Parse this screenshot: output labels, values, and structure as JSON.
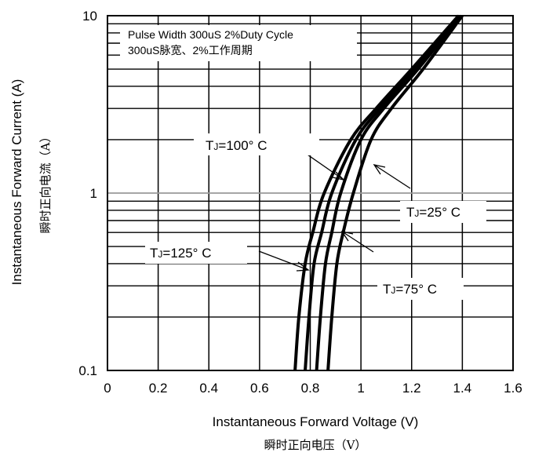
{
  "chart_data": {
    "type": "line",
    "xlabel": "Instantaneous Forward Voltage (V)",
    "xlabel_cn": "瞬时正向电压（V）",
    "ylabel": "Instantaneous Forward Current (A)",
    "ylabel_cn": "瞬时正向电流（A）",
    "xlim": [
      0,
      1.6
    ],
    "ylim": [
      0.1,
      10
    ],
    "yscale": "log",
    "grid": true,
    "x_ticks": [
      "0",
      "0.2",
      "0.4",
      "0.6",
      "0.8",
      "1",
      "1.2",
      "1.4",
      "1.6"
    ],
    "y_ticks": [
      "0.1",
      "1",
      "10"
    ],
    "note_lines": [
      "Pulse Width 300uS 2%Duty Cycle",
      "300uS脉宽、2%工作周期"
    ],
    "series": [
      {
        "name": "TJ=125°C",
        "label_main": "T",
        "label_sub": "J",
        "label_rest": "=125° C",
        "points": [
          [
            0.74,
            0.1
          ],
          [
            0.755,
            0.2
          ],
          [
            0.78,
            0.4
          ],
          [
            0.81,
            0.6
          ],
          [
            0.855,
            1
          ],
          [
            0.96,
            2
          ],
          [
            1.06,
            3
          ],
          [
            1.2,
            5
          ],
          [
            1.385,
            10
          ]
        ]
      },
      {
        "name": "TJ=100°C",
        "label_main": "T",
        "label_sub": "J",
        "label_rest": "=100° C",
        "points": [
          [
            0.78,
            0.1
          ],
          [
            0.795,
            0.2
          ],
          [
            0.815,
            0.4
          ],
          [
            0.845,
            0.6
          ],
          [
            0.885,
            1
          ],
          [
            0.98,
            2
          ],
          [
            1.075,
            3
          ],
          [
            1.21,
            5
          ],
          [
            1.39,
            10
          ]
        ]
      },
      {
        "name": "TJ=75°C",
        "label_main": "T",
        "label_sub": "J",
        "label_rest": "=75° C",
        "points": [
          [
            0.825,
            0.1
          ],
          [
            0.84,
            0.2
          ],
          [
            0.86,
            0.4
          ],
          [
            0.885,
            0.6
          ],
          [
            0.92,
            1
          ],
          [
            1.0,
            2
          ],
          [
            1.09,
            3
          ],
          [
            1.225,
            5
          ],
          [
            1.395,
            10
          ]
        ]
      },
      {
        "name": "TJ=25°C",
        "label_main": "T",
        "label_sub": "J",
        "label_rest": "=25° C",
        "points": [
          [
            0.87,
            0.1
          ],
          [
            0.885,
            0.2
          ],
          [
            0.905,
            0.4
          ],
          [
            0.93,
            0.6
          ],
          [
            0.97,
            1
          ],
          [
            1.04,
            2
          ],
          [
            1.12,
            3
          ],
          [
            1.245,
            5
          ],
          [
            1.4,
            10
          ]
        ]
      }
    ]
  }
}
